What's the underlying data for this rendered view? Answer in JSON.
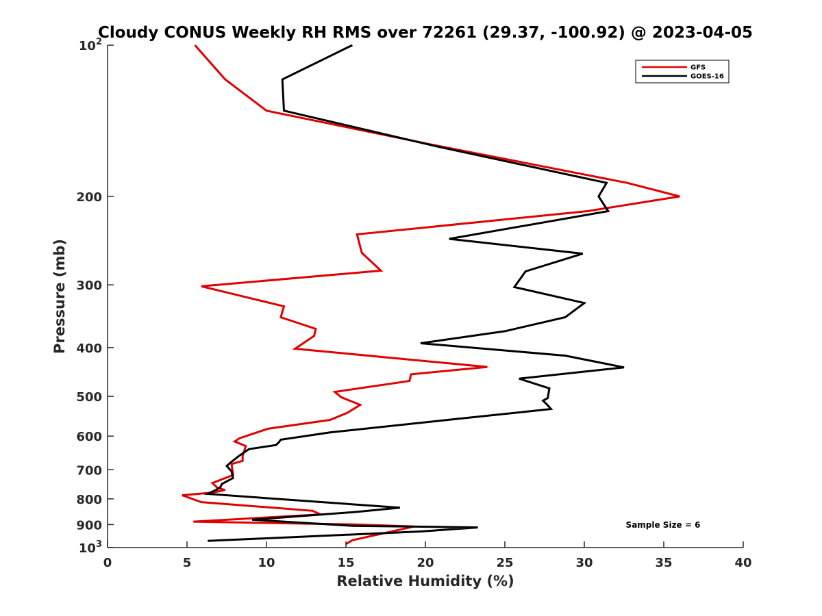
{
  "chart_data": {
    "type": "line",
    "title": "Cloudy CONUS Weekly RH RMS over 72261 (29.37, -100.92) @ 2023-04-05",
    "xlabel": "Relative Humidity (%)",
    "ylabel": "Pressure (mb)",
    "xlim": [
      0,
      40
    ],
    "ylim": [
      100,
      1000
    ],
    "yscale": "log",
    "y_reversed": true,
    "x_ticks": [
      "0",
      "5",
      "10",
      "15",
      "20",
      "25",
      "30",
      "35",
      "40"
    ],
    "y_ticks": [
      {
        "value": 100,
        "label": "10",
        "sup": "2"
      },
      {
        "value": 200,
        "label": "200",
        "sup": ""
      },
      {
        "value": 300,
        "label": "300",
        "sup": ""
      },
      {
        "value": 400,
        "label": "400",
        "sup": ""
      },
      {
        "value": 500,
        "label": "500",
        "sup": ""
      },
      {
        "value": 600,
        "label": "600",
        "sup": ""
      },
      {
        "value": 700,
        "label": "700",
        "sup": ""
      },
      {
        "value": 800,
        "label": "800",
        "sup": ""
      },
      {
        "value": 900,
        "label": "900",
        "sup": ""
      },
      {
        "value": 1000,
        "label": "10",
        "sup": "3"
      }
    ],
    "grid": false,
    "legend_position": "top-right",
    "annotation": "Sample Size = 6",
    "series": [
      {
        "name": "GFS",
        "color": "#e00000",
        "points": [
          [
            5.5,
            100
          ],
          [
            7.4,
            117
          ],
          [
            10.0,
            135
          ],
          [
            20.5,
            158
          ],
          [
            32.7,
            188
          ],
          [
            36.0,
            200
          ],
          [
            30.2,
            214
          ],
          [
            15.7,
            238
          ],
          [
            16.0,
            259
          ],
          [
            17.2,
            281
          ],
          [
            5.9,
            302
          ],
          [
            11.1,
            331
          ],
          [
            10.9,
            348
          ],
          [
            13.1,
            367
          ],
          [
            13.0,
            379
          ],
          [
            11.8,
            402
          ],
          [
            23.9,
            437
          ],
          [
            19.1,
            452
          ],
          [
            19.0,
            466
          ],
          [
            14.3,
            490
          ],
          [
            14.7,
            502
          ],
          [
            15.9,
            520
          ],
          [
            15.1,
            539
          ],
          [
            14.0,
            557
          ],
          [
            10.1,
            580
          ],
          [
            8.3,
            606
          ],
          [
            8.0,
            615
          ],
          [
            8.7,
            628
          ],
          [
            8.5,
            657
          ],
          [
            8.5,
            672
          ],
          [
            7.8,
            682
          ],
          [
            7.9,
            717
          ],
          [
            6.6,
            744
          ],
          [
            6.9,
            760
          ],
          [
            7.4,
            768
          ],
          [
            6.6,
            777
          ],
          [
            4.7,
            787
          ],
          [
            5.9,
            812
          ],
          [
            12.9,
            845
          ],
          [
            13.4,
            859
          ],
          [
            5.4,
            888
          ],
          [
            15.7,
            900
          ],
          [
            19.3,
            908
          ],
          [
            15.4,
            967
          ],
          [
            15.0,
            984
          ]
        ]
      },
      {
        "name": "GOES-16",
        "color": "#000000",
        "points": [
          [
            15.4,
            100
          ],
          [
            11.0,
            117
          ],
          [
            11.1,
            135
          ],
          [
            20.7,
            159
          ],
          [
            31.4,
            188
          ],
          [
            30.9,
            200
          ],
          [
            31.5,
            214
          ],
          [
            21.5,
            243
          ],
          [
            29.9,
            260
          ],
          [
            26.3,
            282
          ],
          [
            25.6,
            303
          ],
          [
            30.0,
            326
          ],
          [
            28.8,
            348
          ],
          [
            25.0,
            371
          ],
          [
            19.7,
            392
          ],
          [
            28.8,
            415
          ],
          [
            32.5,
            438
          ],
          [
            25.9,
            461
          ],
          [
            27.8,
            482
          ],
          [
            27.7,
            504
          ],
          [
            27.4,
            510
          ],
          [
            27.7,
            521
          ],
          [
            27.9,
            530
          ],
          [
            21.9,
            555
          ],
          [
            14.0,
            590
          ],
          [
            10.9,
            610
          ],
          [
            10.8,
            616
          ],
          [
            10.6,
            625
          ],
          [
            8.9,
            637
          ],
          [
            8.3,
            656
          ],
          [
            7.8,
            675
          ],
          [
            7.5,
            688
          ],
          [
            7.8,
            705
          ],
          [
            7.9,
            727
          ],
          [
            7.2,
            747
          ],
          [
            7.1,
            758
          ],
          [
            6.9,
            766
          ],
          [
            6.3,
            782
          ],
          [
            18.4,
            833
          ],
          [
            15.5,
            850
          ],
          [
            9.1,
            880
          ],
          [
            15.4,
            905
          ],
          [
            23.3,
            912
          ],
          [
            19.7,
            929
          ],
          [
            6.3,
            970
          ]
        ]
      }
    ]
  }
}
